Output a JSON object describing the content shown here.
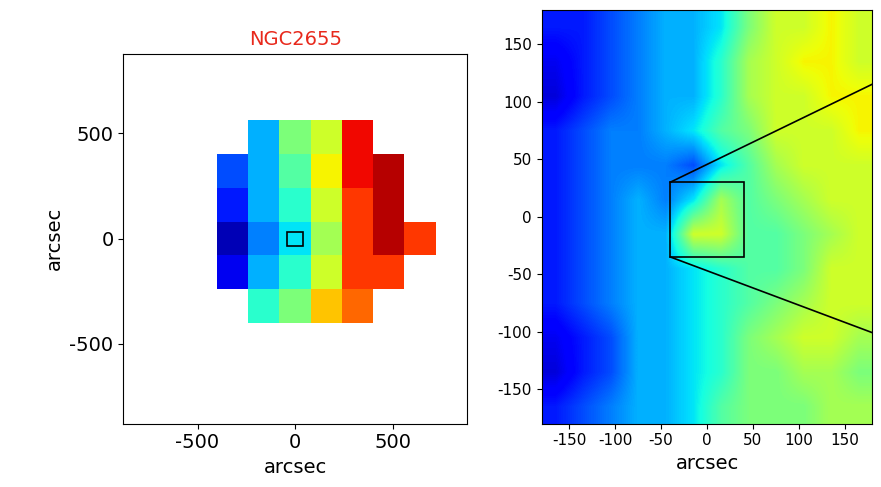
{
  "chart_data": [
    {
      "type": "heatmap",
      "title": "NGC2655",
      "xlabel": "arcsec",
      "ylabel": "arcsec",
      "xlim": [
        -880,
        880
      ],
      "ylim": [
        -880,
        880
      ],
      "xticks": [
        -500,
        0,
        500
      ],
      "yticks": [
        -500,
        0,
        500
      ],
      "crange": [
        0,
        10
      ],
      "box": {
        "x": [
          -40,
          40
        ],
        "y": [
          -35,
          30
        ]
      },
      "cells": [
        [
          null,
          null,
          null,
          null,
          null,
          null,
          null,
          null,
          null,
          null,
          null
        ],
        [
          null,
          null,
          null,
          null,
          null,
          null,
          null,
          null,
          null,
          null,
          null
        ],
        [
          null,
          null,
          null,
          null,
          3,
          5,
          6,
          9,
          null,
          null,
          null
        ],
        [
          null,
          null,
          null,
          2,
          3,
          4.5,
          6.5,
          9,
          9.5,
          null,
          null
        ],
        [
          null,
          null,
          null,
          1.5,
          3,
          4,
          6,
          8.5,
          9.5,
          null,
          null
        ],
        [
          null,
          null,
          null,
          0.5,
          2.5,
          3.5,
          5.5,
          8.5,
          9.5,
          8.5,
          null
        ],
        [
          null,
          null,
          null,
          1,
          3,
          4,
          6,
          8.5,
          8.5,
          null,
          null
        ],
        [
          null,
          null,
          null,
          null,
          4,
          5,
          7,
          8,
          null,
          null,
          null
        ],
        [
          null,
          null,
          null,
          null,
          null,
          null,
          null,
          null,
          null,
          null,
          null
        ],
        [
          null,
          null,
          null,
          null,
          null,
          null,
          null,
          null,
          null,
          null,
          null
        ],
        [
          null,
          null,
          null,
          null,
          null,
          null,
          null,
          null,
          null,
          null,
          null
        ]
      ]
    },
    {
      "type": "heatmap",
      "xlabel": "arcsec",
      "xlim": [
        -180,
        180
      ],
      "ylim": [
        -180,
        180
      ],
      "xticks": [
        -150,
        -100,
        -50,
        0,
        50,
        100,
        150
      ],
      "yticks": [
        -150,
        -100,
        -50,
        0,
        50,
        100,
        150
      ],
      "crange": [
        0,
        10
      ],
      "box": {
        "x": [
          -40,
          40
        ],
        "y": [
          -35,
          30
        ]
      },
      "cells": [
        [
          1.5,
          1.5,
          2,
          2.5,
          3,
          3,
          3.5,
          5,
          6,
          6,
          6.5,
          6
        ],
        [
          1,
          1.5,
          2,
          2.5,
          3,
          3,
          4,
          5.5,
          6,
          6.5,
          6.5,
          6
        ],
        [
          0.8,
          1.5,
          2,
          2.5,
          3,
          3,
          4,
          5.5,
          6,
          6,
          6.5,
          6.5
        ],
        [
          1.5,
          2,
          2.5,
          2.5,
          3,
          3.5,
          4.5,
          5,
          6,
          6,
          6,
          6.5
        ],
        [
          1.5,
          2,
          2.5,
          2.5,
          2.5,
          2,
          3.5,
          4.5,
          5.5,
          6,
          6,
          6
        ],
        [
          1.5,
          2,
          2.5,
          3,
          2.5,
          3.5,
          5.5,
          4.5,
          5,
          5.5,
          6,
          6
        ],
        [
          1.5,
          2,
          2.5,
          3,
          3,
          6,
          6,
          4.5,
          4.5,
          5,
          5.5,
          6
        ],
        [
          1.5,
          2,
          2.5,
          3,
          3,
          3.5,
          4,
          4.5,
          4.5,
          5,
          6,
          6
        ],
        [
          1.5,
          2,
          2.5,
          3,
          3,
          3.5,
          4,
          4.5,
          5,
          5.5,
          6,
          6
        ],
        [
          1,
          1.5,
          2,
          3,
          3,
          3.5,
          4,
          5,
          5.5,
          6,
          6,
          5.5
        ],
        [
          0.8,
          1.5,
          2,
          3,
          3,
          3.5,
          4,
          5,
          5,
          5.5,
          5.5,
          5
        ],
        [
          1.5,
          2,
          2.5,
          3,
          3,
          3.5,
          4.5,
          5,
          5,
          5,
          5.5,
          5.5
        ]
      ]
    }
  ]
}
